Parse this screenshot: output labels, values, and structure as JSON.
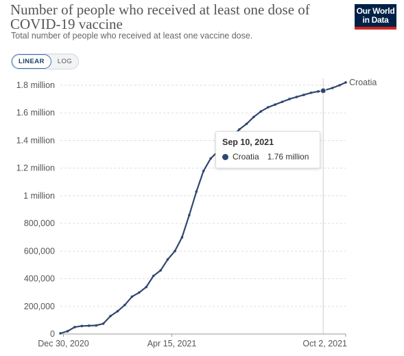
{
  "header": {
    "title": "Number of people who received at least one dose of COVID-19 vaccine",
    "subtitle": "Total number of people who received at least one vaccine dose.",
    "logo_line1": "Our World",
    "logo_line2": "in Data"
  },
  "scale_toggle": {
    "linear_label": "LINEAR",
    "log_label": "LOG",
    "selected": "LINEAR"
  },
  "tooltip": {
    "date": "Sep 10, 2021",
    "series": "Croatia",
    "value": "1.76 million"
  },
  "colors": {
    "line": "#2f4670",
    "grid": "#dddddd",
    "logo_bg": "#002147",
    "logo_accent": "#ce261e"
  },
  "chart_data": {
    "type": "line",
    "title": "Number of people who received at least one dose of COVID-19 vaccine",
    "subtitle": "Total number of people who received at least one vaccine dose.",
    "scale": "linear",
    "ylim": [
      0,
      1800000
    ],
    "y_ticks": [
      {
        "value": 0,
        "label": "0"
      },
      {
        "value": 200000,
        "label": "200,000"
      },
      {
        "value": 400000,
        "label": "400,000"
      },
      {
        "value": 600000,
        "label": "600,000"
      },
      {
        "value": 800000,
        "label": "800,000"
      },
      {
        "value": 1000000,
        "label": "1 million"
      },
      {
        "value": 1200000,
        "label": "1.2 million"
      },
      {
        "value": 1400000,
        "label": "1.4 million"
      },
      {
        "value": 1600000,
        "label": "1.6 million"
      },
      {
        "value": 1800000,
        "label": "1.8 million"
      }
    ],
    "xlim": [
      "2020-12-27",
      "2021-10-02"
    ],
    "x_ticks": [
      {
        "value": "2020-12-30",
        "label": "Dec 30, 2020"
      },
      {
        "value": "2021-04-15",
        "label": "Apr 15, 2021"
      },
      {
        "value": "2021-10-02",
        "label": "Oct 2, 2021"
      }
    ],
    "grid": "horizontal",
    "series": [
      {
        "name": "Croatia",
        "end_label": "Croatia",
        "x": [
          "2020-12-27",
          "2021-01-03",
          "2021-01-10",
          "2021-01-17",
          "2021-01-24",
          "2021-01-31",
          "2021-02-07",
          "2021-02-14",
          "2021-02-21",
          "2021-02-28",
          "2021-03-07",
          "2021-03-14",
          "2021-03-21",
          "2021-03-28",
          "2021-04-04",
          "2021-04-11",
          "2021-04-18",
          "2021-04-25",
          "2021-05-02",
          "2021-05-09",
          "2021-05-16",
          "2021-05-23",
          "2021-05-30",
          "2021-06-06",
          "2021-06-13",
          "2021-06-20",
          "2021-06-27",
          "2021-07-04",
          "2021-07-11",
          "2021-07-18",
          "2021-07-25",
          "2021-08-01",
          "2021-08-08",
          "2021-08-15",
          "2021-08-22",
          "2021-08-29",
          "2021-09-05",
          "2021-09-10",
          "2021-09-19",
          "2021-09-26",
          "2021-10-02"
        ],
        "y": [
          5000,
          20000,
          50000,
          58000,
          60000,
          62000,
          75000,
          130000,
          165000,
          210000,
          270000,
          300000,
          340000,
          420000,
          460000,
          540000,
          600000,
          700000,
          860000,
          1030000,
          1180000,
          1270000,
          1320000,
          1370000,
          1430000,
          1480000,
          1520000,
          1570000,
          1610000,
          1640000,
          1660000,
          1680000,
          1700000,
          1715000,
          1730000,
          1745000,
          1755000,
          1760000,
          1780000,
          1800000,
          1820000
        ]
      }
    ],
    "highlight": {
      "x": "2021-09-10",
      "y": 1760000
    }
  }
}
